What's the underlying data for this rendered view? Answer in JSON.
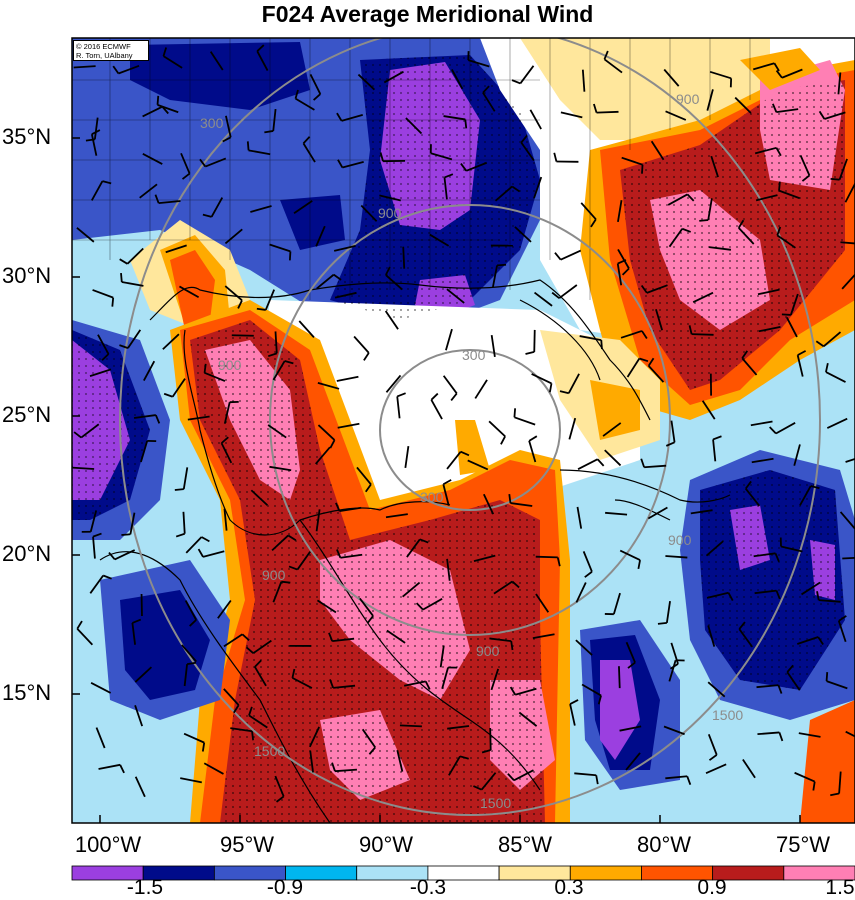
{
  "title": "F024 Average Meridional Wind",
  "credit": {
    "line1": "© 2016 ECMWF",
    "line2": "R. Torn, UAlbany"
  },
  "lat_labels": [
    "35°N",
    "30°N",
    "25°N",
    "20°N",
    "15°N"
  ],
  "lon_labels": [
    "100°W",
    "95°W",
    "90°W",
    "85°W",
    "80°W",
    "75°W"
  ],
  "colorbar": {
    "tick_labels": [
      "-1.5",
      "-0.9",
      "-0.3",
      "0.3",
      "0.9",
      "1.5"
    ],
    "colors": [
      "#9b3fe0",
      "#000b8a",
      "#3a55c8",
      "#00b6ef",
      "#abe2f6",
      "#ffffff",
      "#ffe79c",
      "#ffaa00",
      "#ff5400",
      "#b81c1c",
      "#ff7fb4"
    ]
  },
  "contour_labels": [
    "300",
    "300",
    "300",
    "900",
    "900",
    "900",
    "900",
    "900",
    "900",
    "1500",
    "1500",
    "1500"
  ],
  "map_extent": {
    "lon_range": [
      -102,
      -74
    ],
    "lat_range": [
      10.5,
      38.5
    ]
  },
  "fill_colors": {
    "purple": "#9b3fe0",
    "navy": "#000b8a",
    "blue": "#3a55c8",
    "cyan": "#00b6ef",
    "lightblue": "#abe2f6",
    "white": "#ffffff",
    "lightyellow": "#ffe79c",
    "orange": "#ffaa00",
    "redorange": "#ff5400",
    "darkred": "#b81c1c",
    "pink": "#ff7fb4",
    "contour": "#8c8c8c"
  }
}
